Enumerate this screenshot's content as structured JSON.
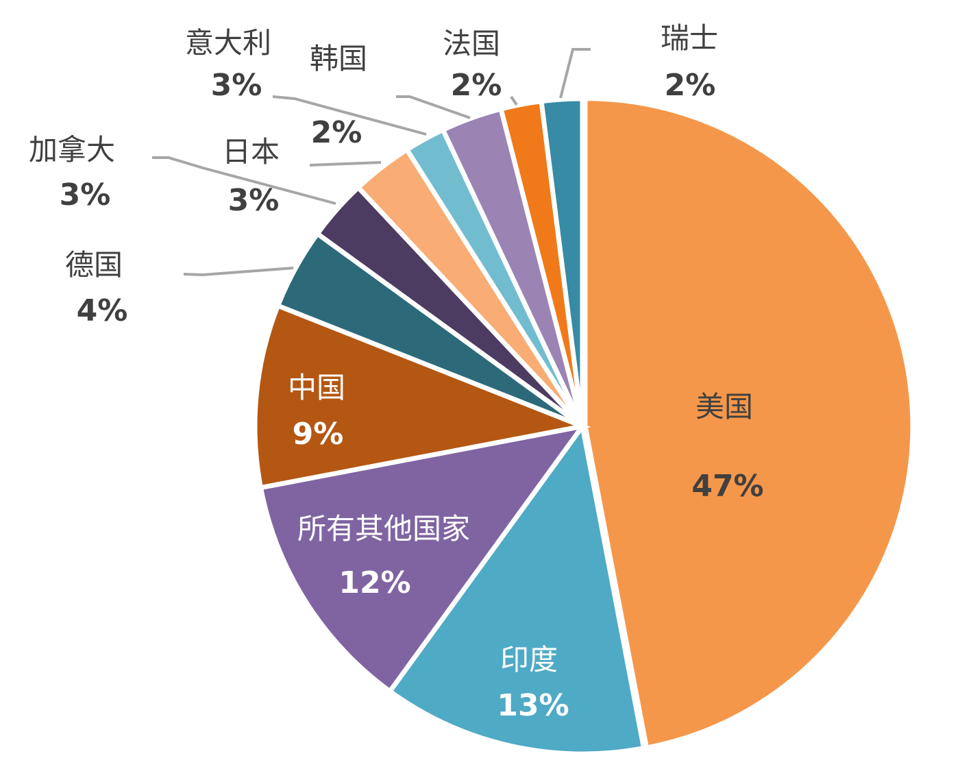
{
  "chart_data": {
    "type": "pie",
    "title": "",
    "slices": [
      {
        "label": "美国",
        "value": 47,
        "value_label": "47%",
        "color": "#f5974a",
        "text_color": "#404040"
      },
      {
        "label": "印度",
        "value": 13,
        "value_label": "13%",
        "color": "#4faac6",
        "text_color": "#ffffff"
      },
      {
        "label": "所有其他国家",
        "value": 12,
        "value_label": "12%",
        "color": "#8064a2",
        "text_color": "#ffffff"
      },
      {
        "label": "中国",
        "value": 9,
        "value_label": "9%",
        "color": "#b45713",
        "text_color": "#ffffff"
      },
      {
        "label": "德国",
        "value": 4,
        "value_label": "4%",
        "color": "#2c6a7a",
        "text_color": "#404040"
      },
      {
        "label": "加拿大",
        "value": 3,
        "value_label": "3%",
        "color": "#4d3c62",
        "text_color": "#404040"
      },
      {
        "label": "日本",
        "value": 3,
        "value_label": "3%",
        "color": "#f9ac73",
        "text_color": "#404040"
      },
      {
        "label": "韩国",
        "value": 2,
        "value_label": "2%",
        "color": "#72bcd0",
        "text_color": "#404040"
      },
      {
        "label": "意大利",
        "value": 3,
        "value_label": "3%",
        "color": "#9b84b4",
        "text_color": "#404040"
      },
      {
        "label": "法国",
        "value": 2,
        "value_label": "2%",
        "color": "#f07a1a",
        "text_color": "#404040"
      },
      {
        "label": "瑞士",
        "value": 2,
        "value_label": "2%",
        "color": "#378ba4",
        "text_color": "#404040"
      }
    ],
    "start_angle_deg": 0,
    "direction": "clockwise"
  }
}
